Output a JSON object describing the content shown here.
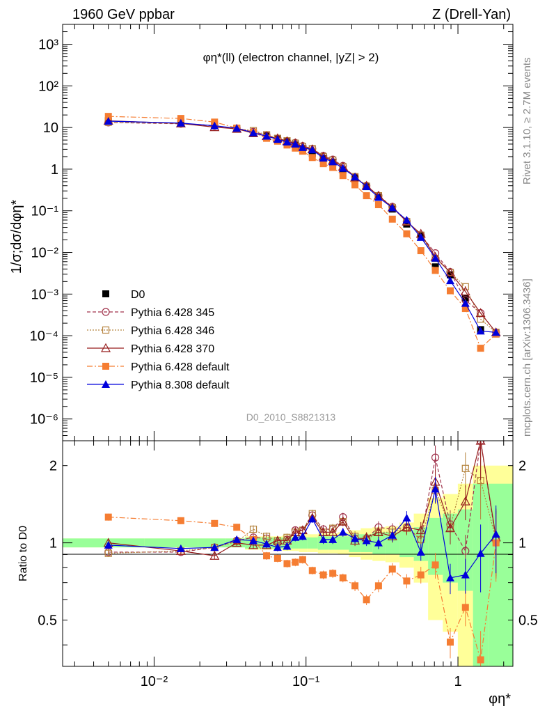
{
  "header": {
    "left": "1960 GeV ppbar",
    "right": "Z (Drell-Yan)"
  },
  "side_text": {
    "top": "Rivet 3.1.10, ≥ 2.7M events",
    "bottom": "mcplots.cern.ch [arXiv:1306.3436]"
  },
  "watermark": "D0_2010_S8821313",
  "colors": {
    "d0": "#000000",
    "p345": "#a0324b",
    "p346": "#b4823c",
    "p370": "#961e1e",
    "pdef": "#f57d32",
    "p8": "#0000dc",
    "band_green": "#99ff99",
    "band_yellow": "#ffff99"
  },
  "chart_data": [
    {
      "type": "scatter",
      "title": "φη*(ll) (electron channel, |yZ| > 2)",
      "ylabel": "1/σ;dσ/dφη*",
      "xscale": "log",
      "yscale": "log",
      "xlim": [
        0.0025,
        2.3
      ],
      "ylim": [
        3e-07,
        3000
      ],
      "yticks": [
        {
          "v": 1e-06,
          "label": "10⁻⁶"
        },
        {
          "v": 1e-05,
          "label": "10⁻⁵"
        },
        {
          "v": 0.0001,
          "label": "10⁻⁴"
        },
        {
          "v": 0.001,
          "label": "10⁻³"
        },
        {
          "v": 0.01,
          "label": "10⁻²"
        },
        {
          "v": 0.1,
          "label": "10⁻¹"
        },
        {
          "v": 1,
          "label": "1"
        },
        {
          "v": 10,
          "label": "10"
        },
        {
          "v": 100,
          "label": "10²"
        },
        {
          "v": 1000,
          "label": "10³"
        }
      ],
      "x": [
        0.005,
        0.015,
        0.025,
        0.035,
        0.045,
        0.055,
        0.065,
        0.075,
        0.085,
        0.095,
        0.11,
        0.13,
        0.15,
        0.175,
        0.21,
        0.25,
        0.3,
        0.37,
        0.46,
        0.57,
        0.71,
        0.89,
        1.12,
        1.41,
        1.78
      ],
      "series": [
        {
          "name": "D0",
          "key": "d0",
          "marker": "square",
          "values": [
            14.5,
            13.5,
            11.5,
            9.3,
            7.4,
            6.3,
            5.4,
            4.6,
            3.8,
            3.1,
            2.4,
            1.8,
            1.45,
            0.95,
            0.62,
            0.38,
            0.21,
            0.11,
            0.048,
            0.025,
            0.0045,
            0.0029,
            0.0008,
            0.00014,
            0.00011
          ]
        },
        {
          "name": "Pythia 6.428 345",
          "key": "p345",
          "marker": "circle-open",
          "values": [
            13.2,
            12.3,
            10.9,
            9.5,
            7.9,
            6.5,
            5.4,
            4.7,
            4.3,
            3.6,
            3.1,
            2.1,
            1.7,
            1.2,
            0.65,
            0.4,
            0.23,
            0.125,
            0.056,
            0.026,
            0.0096,
            0.0034,
            0.00072,
            0.00035,
            0.00012
          ]
        },
        {
          "name": "Pythia 6.428 346",
          "key": "p346",
          "marker": "square-open",
          "values": [
            13.4,
            12.5,
            11.1,
            9.4,
            8.4,
            6.7,
            5.5,
            4.8,
            4.2,
            3.5,
            3.1,
            2.0,
            1.65,
            1.15,
            0.66,
            0.39,
            0.23,
            0.12,
            0.055,
            0.026,
            0.0072,
            0.0033,
            0.0015,
            0.00025,
            0.00012
          ]
        },
        {
          "name": "Pythia 6.428 370",
          "key": "p370",
          "marker": "triangle-open",
          "values": [
            14.5,
            12.5,
            10.2,
            9.3,
            7.3,
            6.2,
            5.5,
            4.7,
            4.2,
            3.5,
            3.0,
            2.0,
            1.6,
            1.15,
            0.63,
            0.4,
            0.23,
            0.12,
            0.055,
            0.028,
            0.0078,
            0.0033,
            0.00115,
            0.00035,
            0.00012
          ]
        },
        {
          "name": "Pythia 6.428 default",
          "key": "pdef",
          "marker": "square",
          "values": [
            18.5,
            16.5,
            13.5,
            9.7,
            7.7,
            5.5,
            4.7,
            3.8,
            3.2,
            2.7,
            1.9,
            1.35,
            1.1,
            0.7,
            0.42,
            0.23,
            0.14,
            0.063,
            0.028,
            0.011,
            0.0037,
            0.0012,
            0.00045,
            5e-05,
            0.00011
          ]
        },
        {
          "name": "Pythia 8.308 default",
          "key": "p8",
          "marker": "triangle",
          "values": [
            14.2,
            12.8,
            11.0,
            9.6,
            7.5,
            6.2,
            5.2,
            4.5,
            4.0,
            3.3,
            2.9,
            1.85,
            1.5,
            1.05,
            0.65,
            0.38,
            0.21,
            0.118,
            0.06,
            0.023,
            0.0073,
            0.0021,
            0.0006,
            0.00013,
            0.00012
          ]
        }
      ]
    },
    {
      "type": "scatter",
      "ylabel": "Ratio to D0",
      "xlabel": "φη*",
      "xscale": "log",
      "yscale": "log",
      "xlim": [
        0.0025,
        2.3
      ],
      "ylim": [
        0.33,
        2.5
      ],
      "yticks": [
        {
          "v": 0.5,
          "label": "0.5"
        },
        {
          "v": 1,
          "label": "1"
        },
        {
          "v": 2,
          "label": "2"
        }
      ],
      "xticks": [
        {
          "v": 0.01,
          "label": "10⁻²"
        },
        {
          "v": 0.1,
          "label": "10⁻¹"
        },
        {
          "v": 1,
          "label": "1"
        }
      ],
      "x": [
        0.005,
        0.015,
        0.025,
        0.035,
        0.045,
        0.055,
        0.065,
        0.075,
        0.085,
        0.095,
        0.11,
        0.13,
        0.15,
        0.175,
        0.21,
        0.25,
        0.3,
        0.37,
        0.46,
        0.57,
        0.71,
        0.89,
        1.12,
        1.41,
        1.78
      ],
      "band_inner": [
        0.04,
        0.04,
        0.04,
        0.04,
        0.05,
        0.05,
        0.05,
        0.05,
        0.05,
        0.05,
        0.05,
        0.06,
        0.06,
        0.06,
        0.08,
        0.08,
        0.1,
        0.1,
        0.12,
        0.15,
        0.25,
        0.3,
        0.35,
        0.7,
        0.7
      ],
      "band_outer": [
        0.04,
        0.04,
        0.04,
        0.04,
        0.06,
        0.06,
        0.06,
        0.07,
        0.07,
        0.08,
        0.08,
        0.09,
        0.09,
        0.1,
        0.12,
        0.14,
        0.15,
        0.16,
        0.2,
        0.3,
        0.5,
        0.55,
        0.7,
        1.0,
        1.0
      ],
      "series": [
        {
          "name": "Pythia 6.428 345",
          "key": "p345",
          "marker": "circle-open",
          "values": [
            0.92,
            0.92,
            0.96,
            1.02,
            1.05,
            1.04,
            1.0,
            1.03,
            1.12,
            1.12,
            1.28,
            1.13,
            1.13,
            1.26,
            1.04,
            1.04,
            1.15,
            1.13,
            1.15,
            1.03,
            2.15,
            1.18,
            0.93,
            2.5,
            1.03
          ]
        },
        {
          "name": "Pythia 6.428 346",
          "key": "p346",
          "marker": "square-open",
          "values": [
            0.91,
            0.93,
            0.96,
            1.01,
            1.13,
            1.06,
            1.02,
            1.05,
            1.1,
            1.12,
            1.3,
            1.1,
            1.14,
            1.21,
            1.06,
            1.03,
            1.1,
            1.1,
            1.14,
            1.03,
            1.6,
            1.15,
            1.95,
            1.75,
            1.03
          ]
        },
        {
          "name": "Pythia 6.428 370",
          "key": "p370",
          "marker": "triangle-open",
          "values": [
            1.0,
            0.93,
            0.89,
            1.0,
            0.98,
            0.98,
            1.02,
            1.02,
            1.1,
            1.12,
            1.25,
            1.1,
            1.1,
            1.21,
            1.02,
            1.05,
            1.1,
            1.06,
            1.15,
            1.12,
            1.73,
            1.14,
            1.45,
            2.5,
            1.05
          ]
        },
        {
          "name": "Pythia 6.428 default",
          "key": "pdef",
          "marker": "square",
          "values": [
            1.26,
            1.22,
            1.19,
            1.15,
            1.03,
            0.89,
            0.87,
            0.83,
            0.84,
            0.86,
            0.78,
            0.75,
            0.76,
            0.73,
            0.68,
            0.6,
            0.68,
            0.79,
            0.71,
            0.75,
            0.82,
            0.41,
            0.56,
            0.35,
            1.0
          ]
        },
        {
          "name": "Pythia 8.308 default",
          "key": "p8",
          "marker": "triangle",
          "values": [
            0.98,
            0.95,
            0.96,
            1.03,
            1.02,
            0.99,
            0.96,
            0.97,
            1.05,
            1.06,
            1.24,
            1.03,
            1.03,
            1.1,
            1.04,
            1.02,
            1.0,
            1.07,
            1.25,
            0.92,
            1.62,
            0.73,
            0.75,
            0.91,
            1.08
          ]
        }
      ]
    }
  ]
}
